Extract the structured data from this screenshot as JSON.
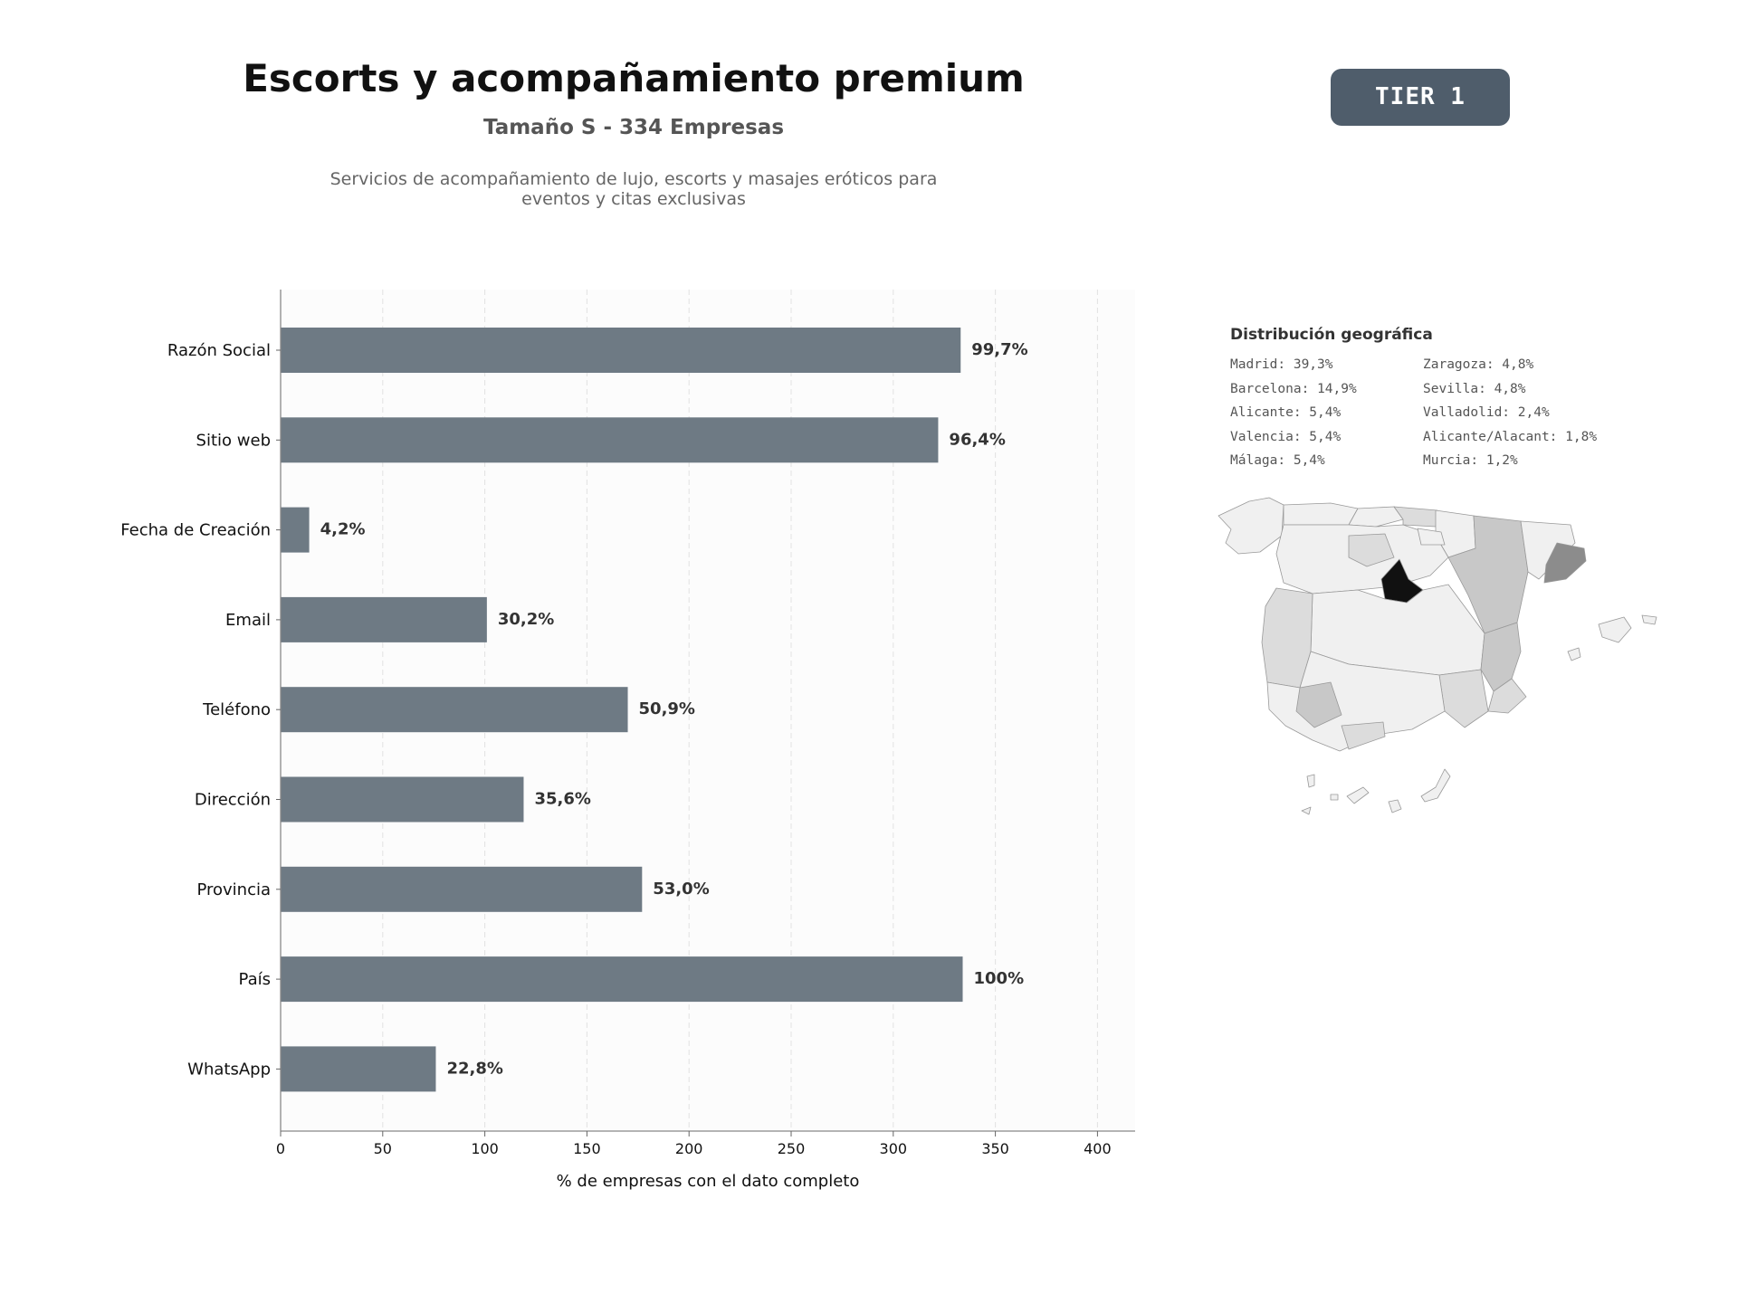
{
  "header": {
    "title": "Escorts y acompañamiento premium",
    "subtitle": "Tamaño S - 334 Empresas",
    "description_lines": [
      "Servicios de acompañamiento de lujo, escorts y masajes eróticos para",
      "eventos y citas exclusivas"
    ],
    "tier": "TIER 1"
  },
  "chart_data": {
    "type": "bar",
    "orientation": "horizontal",
    "categories": [
      "Razón Social",
      "Sitio web",
      "Fecha de Creación",
      "Email",
      "Teléfono",
      "Dirección",
      "Provincia",
      "País",
      "WhatsApp"
    ],
    "values": [
      333,
      322,
      14,
      101,
      170,
      119,
      177,
      334,
      76
    ],
    "value_labels": [
      "99,7%",
      "96,4%",
      "4,2%",
      "30,2%",
      "50,9%",
      "35,6%",
      "53,0%",
      "100%",
      "22,8%"
    ],
    "xlabel": "% de empresas con el dato completo",
    "ylabel": "",
    "xlim": [
      0,
      418
    ],
    "xticks": [
      0,
      50,
      100,
      150,
      200,
      250,
      300,
      350,
      400
    ],
    "grid": "vertical dashed",
    "bar_color": "#6e7a84"
  },
  "geo": {
    "title": "Distribución geográfica",
    "column_left": [
      "Madrid: 39,3%",
      "Barcelona: 14,9%",
      "Alicante: 5,4%",
      "Valencia: 5,4%",
      "Málaga: 5,4%"
    ],
    "column_right": [
      "Zaragoza: 4,8%",
      "Sevilla: 4,8%",
      "Valladolid: 2,4%",
      "Alicante/Alacant: 1,8%",
      "Murcia: 1,2%"
    ]
  },
  "colors": {
    "badge": "#4f5d6b",
    "bar": "#6e7a84",
    "map_max": "#111111",
    "map_high": "#8c8c8c",
    "map_mid": "#c8c8c8",
    "map_low": "#dcdcdc",
    "map_min": "#f0f0f0"
  }
}
